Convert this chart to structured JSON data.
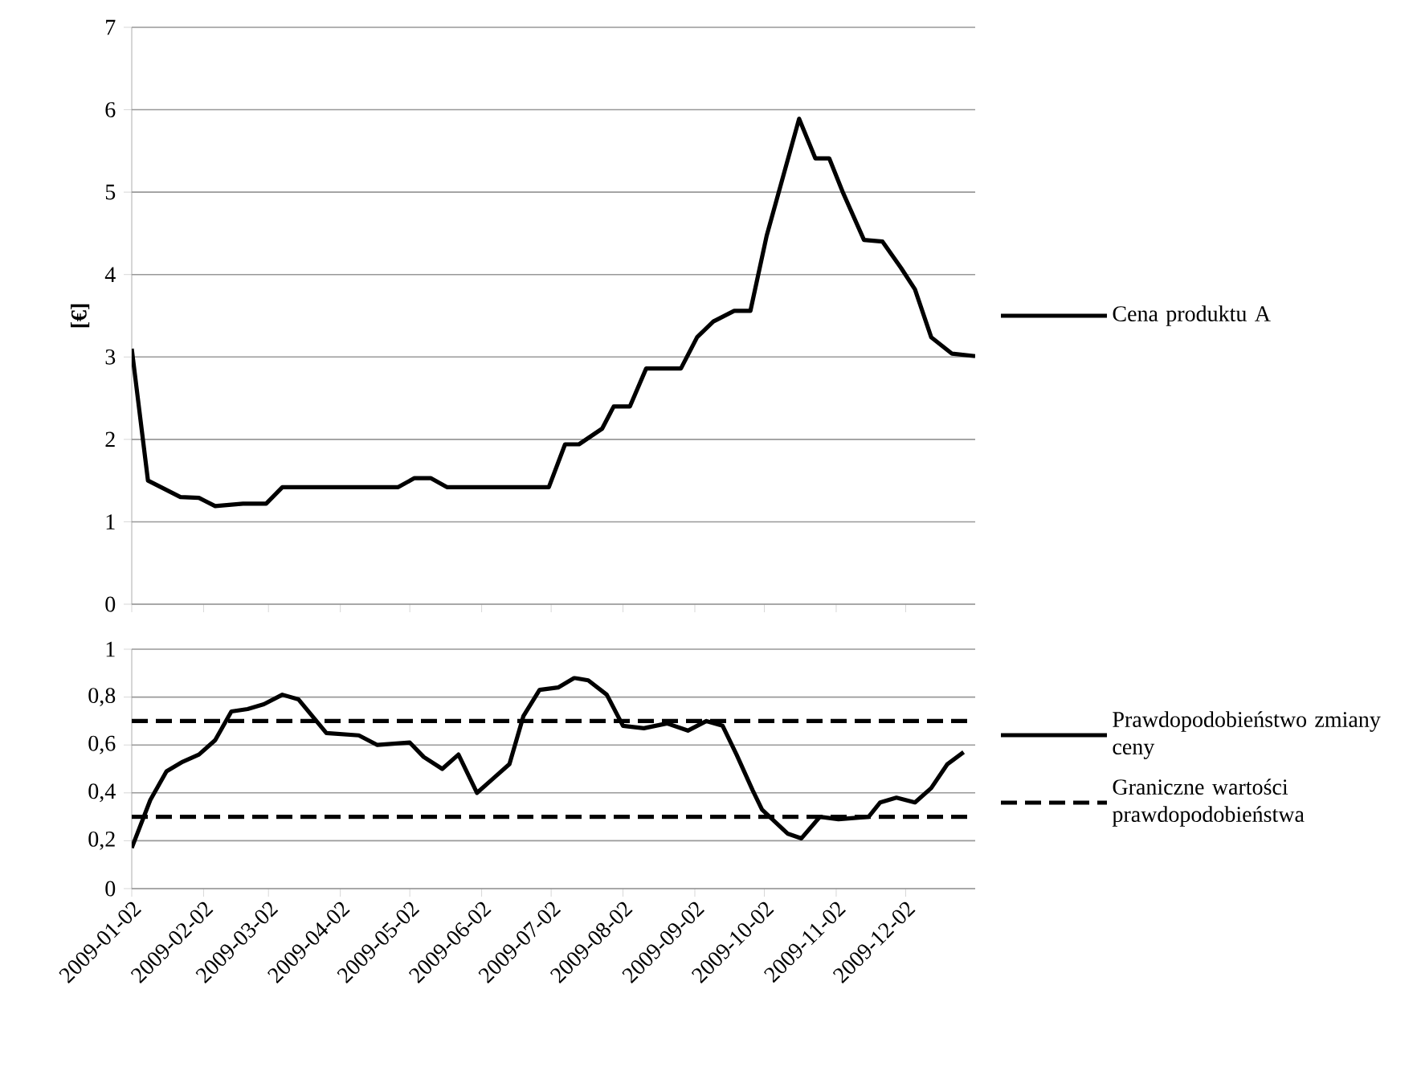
{
  "chart_data": [
    {
      "type": "line",
      "ylabel": "[€]",
      "x": [
        "2009-01-02",
        "2009-01-09",
        "2009-01-23",
        "2009-01-31",
        "2009-02-07",
        "2009-02-19",
        "2009-03-01",
        "2009-03-08",
        "2009-04-27",
        "2009-05-04",
        "2009-05-11",
        "2009-05-18",
        "2009-07-01",
        "2009-07-08",
        "2009-07-14",
        "2009-07-24",
        "2009-07-29",
        "2009-08-05",
        "2009-08-12",
        "2009-08-27",
        "2009-09-03",
        "2009-09-10",
        "2009-09-19",
        "2009-09-26",
        "2009-10-03",
        "2009-10-17",
        "2009-10-24",
        "2009-10-30",
        "2009-11-05",
        "2009-11-14",
        "2009-11-22",
        "2009-11-30",
        "2009-12-06",
        "2009-12-13",
        "2009-12-22",
        "2010-01-01"
      ],
      "series": [
        {
          "name": "Cena produktu A",
          "color": "#000000",
          "values": [
            3.1,
            1.5,
            1.3,
            1.29,
            1.19,
            1.22,
            1.22,
            1.42,
            1.42,
            1.53,
            1.53,
            1.42,
            1.42,
            1.94,
            1.94,
            2.13,
            2.4,
            2.4,
            2.86,
            2.86,
            3.24,
            3.43,
            3.56,
            3.56,
            4.47,
            5.89,
            5.41,
            5.41,
            4.99,
            4.42,
            4.4,
            4.08,
            3.82,
            3.24,
            3.04,
            3.01
          ]
        }
      ],
      "xlim": [
        "2009-01-02",
        "2010-01-01"
      ],
      "xticks": [
        "2009-01-02",
        "2009-02-02",
        "2009-03-02",
        "2009-04-02",
        "2009-05-02",
        "2009-06-02",
        "2009-07-02",
        "2009-08-02",
        "2009-09-02",
        "2009-10-02",
        "2009-11-02",
        "2009-12-02"
      ],
      "ylim": [
        0,
        7
      ],
      "yticks": [
        0,
        1,
        2,
        3,
        4,
        5,
        6,
        7
      ],
      "tick_labels": "y",
      "grid": "y",
      "legend": "right",
      "line_style": "solid"
    },
    {
      "type": "line",
      "x": [
        "2009-01-02",
        "2009-01-10",
        "2009-01-17",
        "2009-01-24",
        "2009-01-31",
        "2009-02-07",
        "2009-02-14",
        "2009-02-21",
        "2009-02-28",
        "2009-03-08",
        "2009-03-15",
        "2009-03-27",
        "2009-04-10",
        "2009-04-18",
        "2009-05-02",
        "2009-05-08",
        "2009-05-16",
        "2009-05-23",
        "2009-05-31",
        "2009-06-07",
        "2009-06-14",
        "2009-06-20",
        "2009-06-27",
        "2009-07-05",
        "2009-07-12",
        "2009-07-18",
        "2009-07-26",
        "2009-08-02",
        "2009-08-11",
        "2009-08-21",
        "2009-08-30",
        "2009-09-07",
        "2009-09-14",
        "2009-09-20",
        "2009-09-27",
        "2009-10-01",
        "2009-10-12",
        "2009-10-18",
        "2009-10-26",
        "2009-11-03",
        "2009-11-16",
        "2009-11-21",
        "2009-11-28",
        "2009-12-06",
        "2009-12-13",
        "2009-12-20",
        "2009-12-27"
      ],
      "series": [
        {
          "name": "Prawdopodobieństwo zmiany ceny",
          "color": "#000000",
          "values": [
            0.17,
            0.37,
            0.49,
            0.53,
            0.56,
            0.62,
            0.74,
            0.75,
            0.77,
            0.81,
            0.79,
            0.65,
            0.64,
            0.6,
            0.61,
            0.55,
            0.5,
            0.56,
            0.4,
            0.46,
            0.52,
            0.72,
            0.83,
            0.84,
            0.88,
            0.87,
            0.81,
            0.68,
            0.67,
            0.69,
            0.66,
            0.7,
            0.68,
            0.56,
            0.41,
            0.33,
            0.23,
            0.21,
            0.3,
            0.29,
            0.3,
            0.36,
            0.38,
            0.36,
            0.42,
            0.52,
            0.57
          ]
        }
      ],
      "ref_lines": [
        {
          "axis": "y",
          "value": 0.7,
          "label": "Graniczne wartości prawdopodobieństwa",
          "color": "#000000",
          "line_style": "dashed"
        },
        {
          "axis": "y",
          "value": 0.3,
          "color": "#000000",
          "line_style": "dashed"
        }
      ],
      "xlim": [
        "2009-01-02",
        "2010-01-01"
      ],
      "xticks": [
        "2009-01-02",
        "2009-02-02",
        "2009-03-02",
        "2009-04-02",
        "2009-05-02",
        "2009-06-02",
        "2009-07-02",
        "2009-08-02",
        "2009-09-02",
        "2009-10-02",
        "2009-11-02",
        "2009-12-02"
      ],
      "ylim": [
        0,
        1
      ],
      "yticks": [
        0,
        {
          "value": 0.2,
          "label": "0,2"
        },
        {
          "value": 0.4,
          "label": "0,4"
        },
        {
          "value": 0.6,
          "label": "0,6"
        },
        {
          "value": 0.8,
          "label": "0,8"
        },
        1
      ],
      "grid": "y",
      "legend": "right",
      "line_style": "solid"
    }
  ]
}
